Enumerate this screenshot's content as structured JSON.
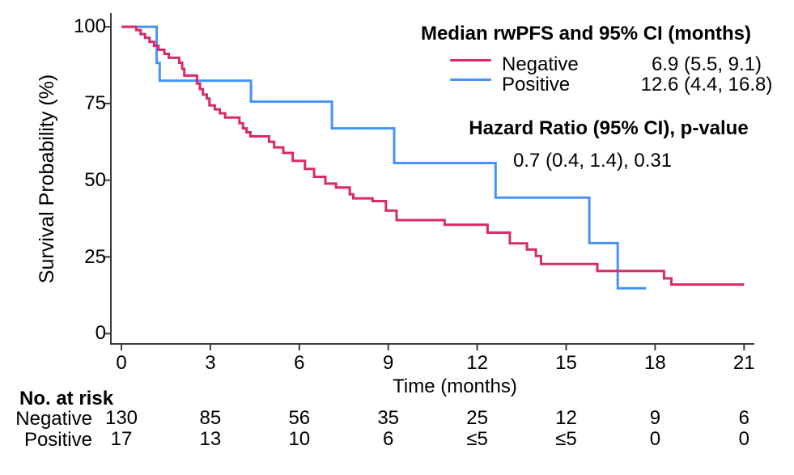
{
  "chart_data": {
    "type": "line",
    "subtype": "kaplan-meier-step",
    "title": "",
    "xlabel": "Time (months)",
    "ylabel": "Survival Probability (%)",
    "xlim": [
      0,
      21
    ],
    "xticks": [
      0,
      3,
      6,
      9,
      12,
      15,
      18,
      21
    ],
    "ylim": [
      0,
      100
    ],
    "yticks": [
      0,
      25,
      50,
      75,
      100
    ],
    "grid": false,
    "legend_position": "top-right",
    "series": [
      {
        "name": "Negative",
        "color": "#D62B64",
        "median_ci": "6.9 (5.5, 9.1)",
        "end_time": 21.0,
        "steps": [
          [
            0,
            100
          ],
          [
            0.5,
            98.9
          ],
          [
            0.65,
            97.6
          ],
          [
            0.8,
            96.4
          ],
          [
            0.95,
            95.1
          ],
          [
            1.1,
            93.8
          ],
          [
            1.25,
            92.5
          ],
          [
            1.45,
            91.2
          ],
          [
            1.6,
            89.9
          ],
          [
            1.95,
            88.3
          ],
          [
            2.05,
            86.3
          ],
          [
            2.12,
            84.1
          ],
          [
            2.55,
            81.5
          ],
          [
            2.65,
            79.7
          ],
          [
            2.75,
            77.9
          ],
          [
            2.88,
            76.6
          ],
          [
            2.97,
            74.4
          ],
          [
            3.15,
            73.1
          ],
          [
            3.32,
            71.8
          ],
          [
            3.5,
            70.4
          ],
          [
            3.98,
            68.6
          ],
          [
            4.1,
            66.9
          ],
          [
            4.22,
            65.6
          ],
          [
            4.35,
            64.3
          ],
          [
            4.98,
            62.5
          ],
          [
            5.15,
            60.7
          ],
          [
            5.46,
            58.9
          ],
          [
            5.78,
            56.3
          ],
          [
            6.19,
            53.7
          ],
          [
            6.5,
            51.1
          ],
          [
            6.88,
            48.9
          ],
          [
            7.24,
            47.6
          ],
          [
            7.7,
            45.4
          ],
          [
            7.82,
            44.1
          ],
          [
            8.47,
            43.2
          ],
          [
            8.92,
            40.1
          ],
          [
            9.28,
            37.0
          ],
          [
            10.9,
            35.5
          ],
          [
            12.35,
            32.9
          ],
          [
            13.1,
            29.4
          ],
          [
            13.68,
            27.4
          ],
          [
            13.98,
            25.3
          ],
          [
            14.15,
            22.7
          ],
          [
            16.05,
            20.4
          ],
          [
            18.3,
            18.0
          ],
          [
            18.55,
            16.0
          ]
        ]
      },
      {
        "name": "Positive",
        "color": "#4493F5",
        "median_ci": "12.6 (4.4, 16.8)",
        "end_time": 17.7,
        "steps": [
          [
            0,
            100
          ],
          [
            1.19,
            88.2
          ],
          [
            1.29,
            82.4
          ],
          [
            4.37,
            75.6
          ],
          [
            7.1,
            66.9
          ],
          [
            9.2,
            55.6
          ],
          [
            12.62,
            44.3
          ],
          [
            15.78,
            29.5
          ],
          [
            16.74,
            14.8
          ]
        ]
      }
    ]
  },
  "legend": {
    "title": "Median rwPFS and 95% CI (months)",
    "entries": [
      {
        "label": "Negative",
        "value": "6.9 (5.5, 9.1)",
        "color": "#D62B64"
      },
      {
        "label": "Positive",
        "value": "12.6 (4.4, 16.8)",
        "color": "#4493F5"
      }
    ],
    "hr_title": "Hazard Ratio (95% CI), p-value",
    "hr_value": "0.7 (0.4, 1.4), 0.31"
  },
  "at_risk": {
    "title": "No. at risk",
    "rows": [
      {
        "label": "Negative",
        "values": [
          "130",
          "85",
          "56",
          "35",
          "25",
          "12",
          "9",
          "6"
        ]
      },
      {
        "label": "Positive",
        "values": [
          "17",
          "13",
          "10",
          "6",
          "≤5",
          "≤5",
          "0",
          "0"
        ]
      }
    ]
  },
  "colors": {
    "negative": "#D62B64",
    "positive": "#4493F5",
    "axis": "#3b3b3b",
    "text": "#000000",
    "background": "#ffffff"
  }
}
